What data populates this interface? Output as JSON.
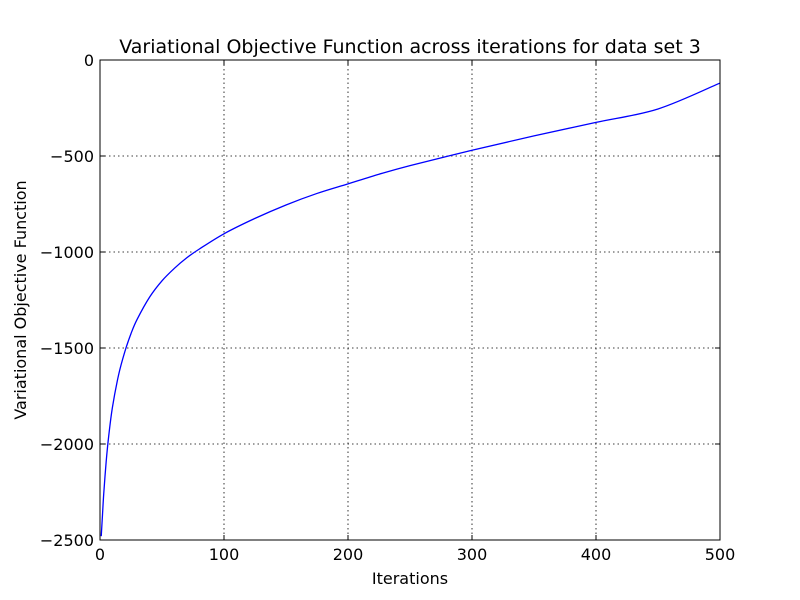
{
  "chart_data": {
    "type": "line",
    "title": "Variational Objective Function across iterations for data set 3",
    "xlabel": "Iterations",
    "ylabel": "Variational Objective Function",
    "xlim": [
      0,
      500
    ],
    "ylim": [
      -2500,
      0
    ],
    "xticks": [
      0,
      100,
      200,
      300,
      400,
      500
    ],
    "xtick_labels": [
      "0",
      "100",
      "200",
      "300",
      "400",
      "500"
    ],
    "yticks": [
      0,
      -500,
      -1000,
      -1500,
      -2000,
      -2500
    ],
    "ytick_labels": [
      "0",
      "−500",
      "−1000",
      "−1500",
      "−2000",
      "−2500"
    ],
    "grid": true,
    "series": [
      {
        "color": "#0000ff",
        "x": [
          1,
          2,
          3,
          5,
          7,
          10,
          15,
          20,
          25,
          30,
          40,
          50,
          60,
          70,
          80,
          100,
          125,
          150,
          175,
          200,
          225,
          250,
          300,
          350,
          400,
          450,
          500
        ],
        "y": [
          -2480,
          -2370,
          -2260,
          -2090,
          -1960,
          -1810,
          -1640,
          -1520,
          -1425,
          -1350,
          -1235,
          -1150,
          -1085,
          -1030,
          -985,
          -905,
          -825,
          -755,
          -695,
          -645,
          -595,
          -550,
          -470,
          -395,
          -325,
          -255,
          -120
        ]
      }
    ]
  }
}
